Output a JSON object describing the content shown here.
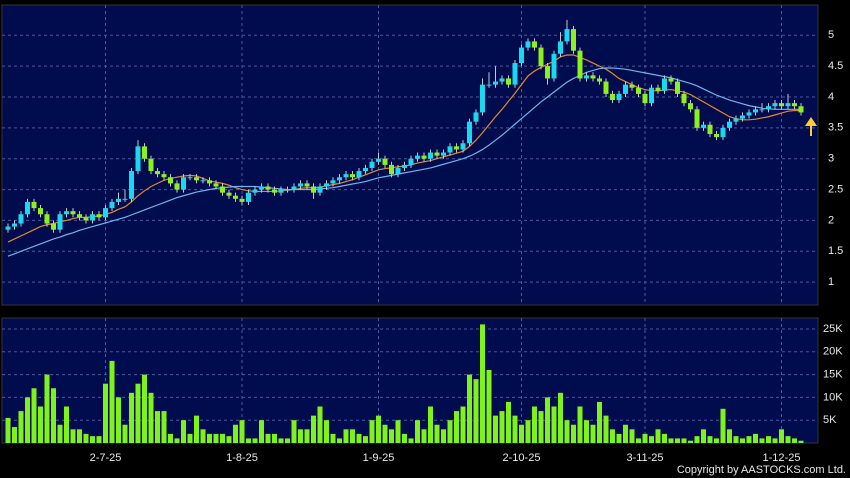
{
  "chart_data": {
    "type": "candlestick",
    "categories": [
      null,
      null,
      null,
      null,
      null,
      null,
      null,
      null,
      null,
      null,
      null,
      null,
      null,
      null,
      null,
      "2-7-25",
      null,
      null,
      null,
      null,
      null,
      null,
      null,
      null,
      null,
      null,
      null,
      null,
      null,
      null,
      null,
      null,
      null,
      null,
      null,
      null,
      "1-8-25",
      null,
      null,
      null,
      null,
      null,
      null,
      null,
      null,
      null,
      null,
      null,
      null,
      null,
      null,
      null,
      null,
      null,
      null,
      null,
      null,
      "1-9-25",
      null,
      null,
      null,
      null,
      null,
      null,
      null,
      null,
      null,
      null,
      null,
      null,
      null,
      null,
      null,
      null,
      null,
      null,
      null,
      null,
      null,
      "2-10-25",
      null,
      null,
      null,
      null,
      null,
      null,
      null,
      null,
      null,
      null,
      null,
      null,
      null,
      null,
      null,
      null,
      null,
      null,
      "3-11-25",
      null,
      null,
      null,
      null,
      null,
      null,
      null,
      null,
      null,
      null,
      null,
      null,
      null,
      null,
      null,
      null,
      null,
      null,
      null,
      null,
      "1-12-25",
      null,
      null,
      null
    ],
    "ohlc": [
      [
        1.85,
        1.95,
        1.8,
        1.9
      ],
      [
        1.9,
        2.0,
        1.85,
        1.95
      ],
      [
        1.95,
        2.15,
        1.9,
        2.1
      ],
      [
        2.1,
        2.35,
        2.05,
        2.3
      ],
      [
        2.3,
        2.35,
        2.15,
        2.2
      ],
      [
        2.2,
        2.25,
        2.05,
        2.1
      ],
      [
        2.1,
        2.15,
        1.9,
        1.95
      ],
      [
        1.95,
        2.0,
        1.8,
        1.85
      ],
      [
        1.85,
        2.15,
        1.8,
        2.1
      ],
      [
        2.1,
        2.2,
        2.05,
        2.15
      ],
      [
        2.15,
        2.2,
        2.05,
        2.1
      ],
      [
        2.1,
        2.15,
        2.0,
        2.05
      ],
      [
        2.05,
        2.1,
        1.95,
        2.0
      ],
      [
        2.0,
        2.15,
        1.95,
        2.1
      ],
      [
        2.1,
        2.15,
        2.0,
        2.05
      ],
      [
        2.05,
        2.25,
        2.0,
        2.2
      ],
      [
        2.2,
        2.35,
        2.15,
        2.3
      ],
      [
        2.3,
        2.45,
        2.25,
        2.35
      ],
      [
        2.35,
        2.5,
        2.3,
        2.35
      ],
      [
        2.35,
        2.85,
        2.3,
        2.8
      ],
      [
        2.8,
        3.3,
        2.75,
        3.2
      ],
      [
        3.2,
        3.25,
        2.95,
        3.0
      ],
      [
        3.0,
        3.05,
        2.75,
        2.8
      ],
      [
        2.8,
        2.85,
        2.7,
        2.75
      ],
      [
        2.75,
        2.8,
        2.65,
        2.7
      ],
      [
        2.7,
        2.75,
        2.55,
        2.6
      ],
      [
        2.6,
        2.65,
        2.45,
        2.5
      ],
      [
        2.5,
        2.75,
        2.45,
        2.7
      ],
      [
        2.7,
        2.75,
        2.65,
        2.7
      ],
      [
        2.7,
        2.75,
        2.6,
        2.65
      ],
      [
        2.65,
        2.7,
        2.6,
        2.65
      ],
      [
        2.65,
        2.7,
        2.55,
        2.6
      ],
      [
        2.6,
        2.65,
        2.5,
        2.55
      ],
      [
        2.55,
        2.6,
        2.4,
        2.45
      ],
      [
        2.45,
        2.5,
        2.35,
        2.4
      ],
      [
        2.4,
        2.45,
        2.3,
        2.35
      ],
      [
        2.35,
        2.4,
        2.25,
        2.3
      ],
      [
        2.3,
        2.5,
        2.25,
        2.45
      ],
      [
        2.45,
        2.55,
        2.4,
        2.5
      ],
      [
        2.5,
        2.6,
        2.45,
        2.55
      ],
      [
        2.55,
        2.6,
        2.45,
        2.5
      ],
      [
        2.5,
        2.55,
        2.4,
        2.45
      ],
      [
        2.45,
        2.55,
        2.4,
        2.5
      ],
      [
        2.5,
        2.55,
        2.45,
        2.5
      ],
      [
        2.5,
        2.6,
        2.45,
        2.55
      ],
      [
        2.55,
        2.65,
        2.5,
        2.6
      ],
      [
        2.6,
        2.65,
        2.5,
        2.55
      ],
      [
        2.55,
        2.6,
        2.35,
        2.45
      ],
      [
        2.45,
        2.6,
        2.4,
        2.55
      ],
      [
        2.55,
        2.65,
        2.5,
        2.6
      ],
      [
        2.6,
        2.7,
        2.55,
        2.65
      ],
      [
        2.65,
        2.75,
        2.6,
        2.7
      ],
      [
        2.7,
        2.8,
        2.65,
        2.75
      ],
      [
        2.75,
        2.8,
        2.65,
        2.7
      ],
      [
        2.7,
        2.85,
        2.65,
        2.8
      ],
      [
        2.8,
        2.9,
        2.75,
        2.85
      ],
      [
        2.85,
        3.0,
        2.8,
        2.95
      ],
      [
        2.95,
        3.1,
        2.9,
        3.0
      ],
      [
        3.0,
        3.05,
        2.85,
        2.9
      ],
      [
        2.9,
        2.95,
        2.7,
        2.75
      ],
      [
        2.75,
        2.9,
        2.7,
        2.85
      ],
      [
        2.85,
        2.95,
        2.8,
        2.9
      ],
      [
        2.9,
        3.05,
        2.85,
        3.0
      ],
      [
        3.0,
        3.1,
        2.95,
        3.05
      ],
      [
        3.05,
        3.1,
        2.95,
        3.0
      ],
      [
        3.0,
        3.15,
        2.95,
        3.1
      ],
      [
        3.1,
        3.15,
        3.0,
        3.05
      ],
      [
        3.05,
        3.15,
        3.0,
        3.1
      ],
      [
        3.1,
        3.25,
        3.05,
        3.2
      ],
      [
        3.2,
        3.25,
        3.1,
        3.15
      ],
      [
        3.15,
        3.3,
        3.1,
        3.25
      ],
      [
        3.25,
        3.65,
        3.2,
        3.6
      ],
      [
        3.6,
        3.8,
        3.55,
        3.75
      ],
      [
        3.75,
        4.3,
        3.7,
        4.2
      ],
      [
        4.2,
        4.4,
        4.15,
        4.2
      ],
      [
        4.2,
        4.5,
        4.15,
        4.25
      ],
      [
        4.25,
        4.35,
        4.2,
        4.3
      ],
      [
        4.3,
        4.35,
        4.15,
        4.2
      ],
      [
        4.2,
        4.6,
        4.15,
        4.55
      ],
      [
        4.55,
        4.85,
        4.5,
        4.8
      ],
      [
        4.8,
        4.95,
        4.75,
        4.9
      ],
      [
        4.9,
        4.95,
        4.75,
        4.8
      ],
      [
        4.8,
        4.85,
        4.45,
        4.5
      ],
      [
        4.5,
        4.55,
        4.2,
        4.3
      ],
      [
        4.3,
        4.75,
        4.25,
        4.7
      ],
      [
        4.7,
        5.05,
        4.65,
        4.9
      ],
      [
        4.9,
        5.25,
        4.85,
        5.1
      ],
      [
        5.1,
        5.15,
        4.7,
        4.75
      ],
      [
        4.75,
        4.8,
        4.25,
        4.3
      ],
      [
        4.3,
        4.4,
        4.25,
        4.35
      ],
      [
        4.35,
        4.4,
        4.25,
        4.3
      ],
      [
        4.3,
        4.35,
        4.2,
        4.25
      ],
      [
        4.25,
        4.3,
        4.0,
        4.05
      ],
      [
        4.05,
        4.1,
        3.9,
        3.95
      ],
      [
        3.95,
        4.1,
        3.9,
        4.05
      ],
      [
        4.05,
        4.25,
        4.0,
        4.2
      ],
      [
        4.2,
        4.25,
        4.1,
        4.15
      ],
      [
        4.15,
        4.2,
        4.0,
        4.05
      ],
      [
        4.05,
        4.1,
        3.85,
        3.9
      ],
      [
        3.9,
        4.2,
        3.85,
        4.15
      ],
      [
        4.15,
        4.2,
        4.05,
        4.1
      ],
      [
        4.1,
        4.35,
        4.05,
        4.3
      ],
      [
        4.3,
        4.35,
        4.2,
        4.25
      ],
      [
        4.25,
        4.3,
        4.0,
        4.05
      ],
      [
        4.05,
        4.1,
        3.85,
        3.9
      ],
      [
        3.9,
        3.95,
        3.75,
        3.8
      ],
      [
        3.8,
        3.85,
        3.45,
        3.5
      ],
      [
        3.5,
        3.6,
        3.45,
        3.55
      ],
      [
        3.55,
        3.6,
        3.35,
        3.4
      ],
      [
        3.4,
        3.45,
        3.3,
        3.35
      ],
      [
        3.35,
        3.55,
        3.3,
        3.5
      ],
      [
        3.5,
        3.65,
        3.45,
        3.6
      ],
      [
        3.6,
        3.7,
        3.55,
        3.65
      ],
      [
        3.65,
        3.75,
        3.6,
        3.7
      ],
      [
        3.7,
        3.8,
        3.65,
        3.75
      ],
      [
        3.75,
        3.85,
        3.7,
        3.8
      ],
      [
        3.8,
        3.9,
        3.75,
        3.8
      ],
      [
        3.8,
        3.9,
        3.75,
        3.85
      ],
      [
        3.85,
        3.95,
        3.8,
        3.9
      ],
      [
        3.9,
        3.95,
        3.8,
        3.85
      ],
      [
        3.85,
        4.05,
        3.8,
        3.9
      ],
      [
        3.9,
        3.95,
        3.8,
        3.85
      ],
      [
        3.85,
        3.9,
        3.7,
        3.75
      ]
    ],
    "up_color": "#19d8f0",
    "down_color": "#8ef01e",
    "ylim": [
      0.63,
      5.49
    ],
    "yticks": [
      1,
      1.5,
      2,
      2.5,
      3,
      3.5,
      4,
      4.5,
      5
    ],
    "grid": true,
    "moving_averages": [
      {
        "color": "#e08a2c",
        "values": [
          1.65,
          1.7,
          1.75,
          1.8,
          1.85,
          1.9,
          1.93,
          1.95,
          1.98,
          2.0,
          2.03,
          2.05,
          2.05,
          2.06,
          2.07,
          2.1,
          2.13,
          2.18,
          2.22,
          2.3,
          2.4,
          2.48,
          2.55,
          2.6,
          2.65,
          2.68,
          2.7,
          2.72,
          2.73,
          2.72,
          2.68,
          2.64,
          2.62,
          2.6,
          2.57,
          2.53,
          2.5,
          2.48,
          2.47,
          2.47,
          2.47,
          2.47,
          2.48,
          2.49,
          2.5,
          2.52,
          2.53,
          2.53,
          2.54,
          2.56,
          2.58,
          2.6,
          2.63,
          2.66,
          2.7,
          2.74,
          2.78,
          2.82,
          2.84,
          2.85,
          2.87,
          2.88,
          2.9,
          2.93,
          2.95,
          2.97,
          3.0,
          3.03,
          3.06,
          3.09,
          3.12,
          3.2,
          3.3,
          3.42,
          3.55,
          3.68,
          3.8,
          3.93,
          4.06,
          4.2,
          4.34,
          4.42,
          4.48,
          4.53,
          4.58,
          4.65,
          4.68,
          4.68,
          4.64,
          4.6,
          4.55,
          4.5,
          4.45,
          4.38,
          4.3,
          4.25,
          4.2,
          4.15,
          4.12,
          4.1,
          4.1,
          4.11,
          4.12,
          4.1,
          4.08,
          4.04,
          3.98,
          3.92,
          3.86,
          3.8,
          3.74,
          3.68,
          3.65,
          3.63,
          3.63,
          3.64,
          3.66,
          3.68,
          3.71,
          3.74,
          3.77,
          3.78,
          3.78
        ]
      },
      {
        "color": "#6fb4ee",
        "values": [
          1.42,
          1.46,
          1.5,
          1.54,
          1.58,
          1.62,
          1.66,
          1.7,
          1.73,
          1.77,
          1.8,
          1.84,
          1.87,
          1.9,
          1.93,
          1.96,
          1.99,
          2.02,
          2.05,
          2.09,
          2.13,
          2.17,
          2.21,
          2.25,
          2.29,
          2.33,
          2.37,
          2.4,
          2.43,
          2.46,
          2.48,
          2.5,
          2.52,
          2.53,
          2.54,
          2.55,
          2.55,
          2.55,
          2.55,
          2.54,
          2.53,
          2.52,
          2.51,
          2.5,
          2.5,
          2.5,
          2.5,
          2.5,
          2.51,
          2.52,
          2.53,
          2.55,
          2.57,
          2.59,
          2.61,
          2.63,
          2.66,
          2.69,
          2.71,
          2.73,
          2.75,
          2.77,
          2.79,
          2.81,
          2.83,
          2.85,
          2.88,
          2.91,
          2.94,
          2.97,
          3.0,
          3.04,
          3.09,
          3.15,
          3.22,
          3.3,
          3.38,
          3.47,
          3.56,
          3.65,
          3.74,
          3.83,
          3.92,
          4.0,
          4.08,
          4.16,
          4.24,
          4.3,
          4.35,
          4.4,
          4.43,
          4.46,
          4.47,
          4.47,
          4.46,
          4.45,
          4.43,
          4.41,
          4.39,
          4.37,
          4.35,
          4.33,
          4.31,
          4.28,
          4.25,
          4.22,
          4.18,
          4.13,
          4.08,
          4.03,
          3.99,
          3.95,
          3.92,
          3.89,
          3.86,
          3.84,
          3.82,
          3.81,
          3.8,
          3.8,
          3.8,
          3.8,
          3.8
        ]
      }
    ],
    "volume": {
      "color": "#7ff21c",
      "values": [
        5500,
        3500,
        7000,
        10000,
        12000,
        8000,
        15000,
        12000,
        4000,
        8000,
        3000,
        3000,
        2000,
        1500,
        1500,
        13000,
        18000,
        10000,
        4000,
        11000,
        13000,
        15000,
        11000,
        7000,
        7000,
        2000,
        1000,
        5000,
        2000,
        6000,
        3000,
        2000,
        2000,
        2000,
        1500,
        4000,
        5000,
        1000,
        1000,
        5000,
        2000,
        2000,
        1000,
        1000,
        5000,
        3000,
        3000,
        6000,
        8000,
        5000,
        2000,
        1000,
        3000,
        3000,
        2000,
        1500,
        5000,
        6000,
        4000,
        3000,
        5000,
        2000,
        1000,
        5000,
        3000,
        8000,
        4000,
        3000,
        5000,
        7000,
        8000,
        15000,
        14000,
        26000,
        16000,
        6000,
        7000,
        9000,
        6000,
        4000,
        5000,
        8000,
        7000,
        10000,
        8000,
        11000,
        5000,
        4000,
        8000,
        5000,
        4000,
        9000,
        6000,
        3000,
        2000,
        4000,
        3000,
        1000,
        2000,
        1500,
        3000,
        2000,
        1000,
        1000,
        1000,
        500,
        1500,
        3000,
        1500,
        1000,
        7500,
        3000,
        1500,
        1000,
        1500,
        2000,
        1000,
        1500,
        1000,
        3000,
        1500,
        1000,
        500
      ],
      "ylim": [
        0,
        27400
      ],
      "yticks": [
        {
          "value": 5000,
          "label": "5K"
        },
        {
          "value": 10000,
          "label": "10K"
        },
        {
          "value": 15000,
          "label": "15K"
        },
        {
          "value": 20000,
          "label": "20K"
        },
        {
          "value": 25000,
          "label": "25K"
        }
      ]
    },
    "copyright": "Copyright by AASTOCKS.com Ltd."
  }
}
